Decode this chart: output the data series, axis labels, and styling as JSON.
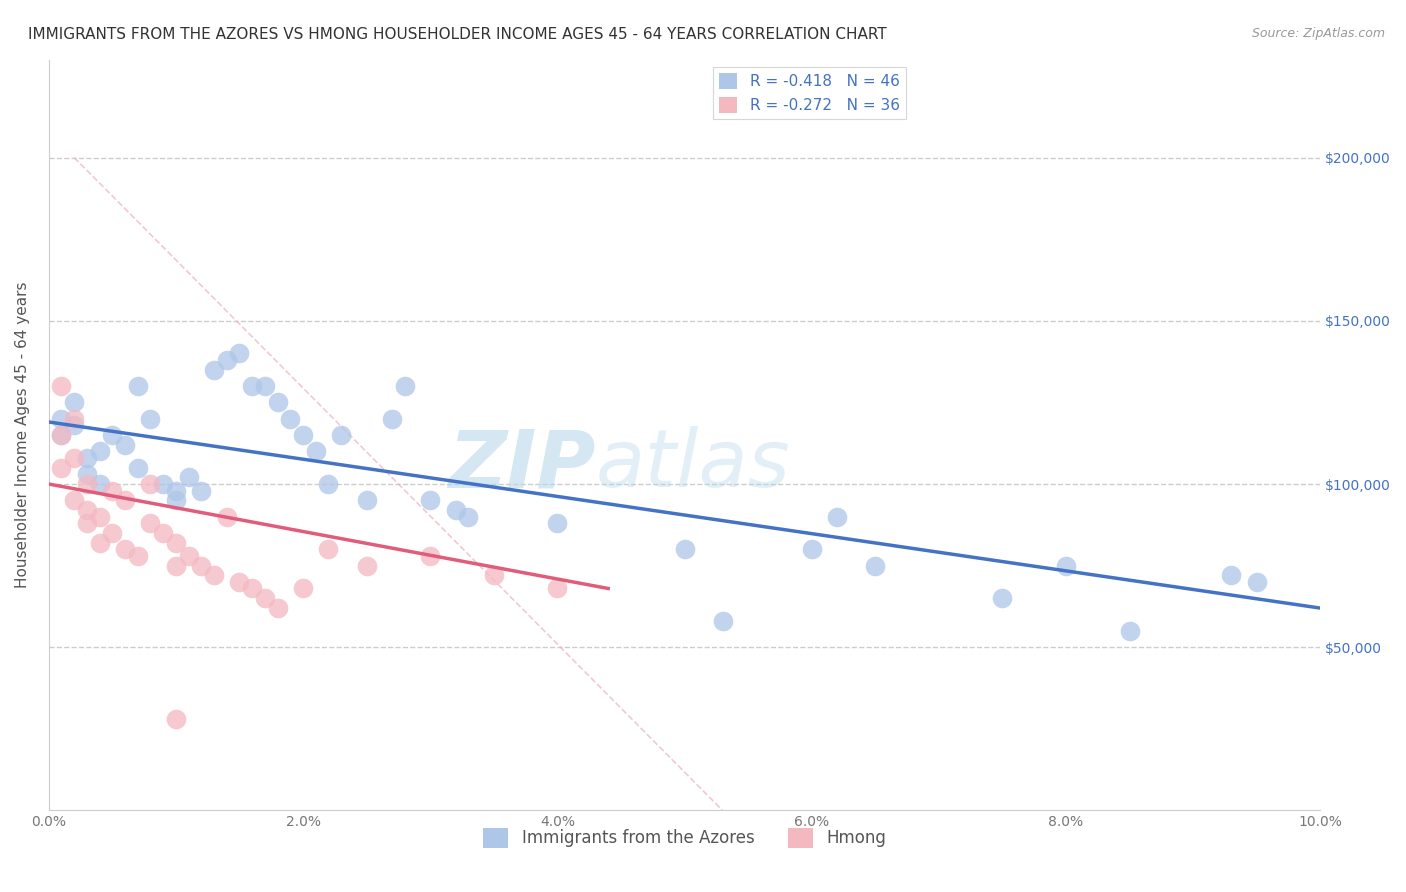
{
  "title": "IMMIGRANTS FROM THE AZORES VS HMONG HOUSEHOLDER INCOME AGES 45 - 64 YEARS CORRELATION CHART",
  "source": "Source: ZipAtlas.com",
  "ylabel": "Householder Income Ages 45 - 64 years",
  "xlim": [
    0.0,
    0.1
  ],
  "ylim": [
    0,
    230000
  ],
  "xticks": [
    0.0,
    0.02,
    0.04,
    0.06,
    0.08,
    0.1
  ],
  "xticklabels": [
    "0.0%",
    "2.0%",
    "4.0%",
    "6.0%",
    "8.0%",
    "10.0%"
  ],
  "yticks": [
    50000,
    100000,
    150000,
    200000
  ],
  "yticklabels": [
    "$50,000",
    "$100,000",
    "$150,000",
    "$200,000"
  ],
  "legend_entries": [
    {
      "label": "R = -0.418   N = 46",
      "color": "#aec6e8"
    },
    {
      "label": "R = -0.272   N = 36",
      "color": "#f4b8c1"
    }
  ],
  "azores_scatter": {
    "x": [
      0.001,
      0.001,
      0.002,
      0.002,
      0.003,
      0.003,
      0.004,
      0.004,
      0.005,
      0.006,
      0.007,
      0.007,
      0.008,
      0.009,
      0.01,
      0.01,
      0.011,
      0.012,
      0.013,
      0.014,
      0.015,
      0.016,
      0.017,
      0.018,
      0.019,
      0.02,
      0.021,
      0.022,
      0.023,
      0.025,
      0.027,
      0.028,
      0.03,
      0.032,
      0.033,
      0.04,
      0.05,
      0.053,
      0.06,
      0.062,
      0.065,
      0.075,
      0.08,
      0.085,
      0.093,
      0.095
    ],
    "y": [
      120000,
      115000,
      125000,
      118000,
      108000,
      103000,
      110000,
      100000,
      115000,
      112000,
      130000,
      105000,
      120000,
      100000,
      98000,
      95000,
      102000,
      98000,
      135000,
      138000,
      140000,
      130000,
      130000,
      125000,
      120000,
      115000,
      110000,
      100000,
      115000,
      95000,
      120000,
      130000,
      95000,
      92000,
      90000,
      88000,
      80000,
      58000,
      80000,
      90000,
      75000,
      65000,
      75000,
      55000,
      72000,
      70000
    ]
  },
  "hmong_scatter": {
    "x": [
      0.001,
      0.001,
      0.001,
      0.002,
      0.002,
      0.002,
      0.003,
      0.003,
      0.003,
      0.004,
      0.004,
      0.005,
      0.005,
      0.006,
      0.006,
      0.007,
      0.008,
      0.008,
      0.009,
      0.01,
      0.01,
      0.011,
      0.012,
      0.013,
      0.014,
      0.015,
      0.016,
      0.017,
      0.018,
      0.02,
      0.022,
      0.025,
      0.03,
      0.035,
      0.04,
      0.01
    ],
    "y": [
      130000,
      115000,
      105000,
      120000,
      108000,
      95000,
      100000,
      92000,
      88000,
      90000,
      82000,
      98000,
      85000,
      95000,
      80000,
      78000,
      100000,
      88000,
      85000,
      82000,
      75000,
      78000,
      75000,
      72000,
      90000,
      70000,
      68000,
      65000,
      62000,
      68000,
      80000,
      75000,
      78000,
      72000,
      68000,
      28000
    ]
  },
  "azores_line": {
    "x0": 0.0,
    "y0": 119000,
    "x1": 0.1,
    "y1": 62000
  },
  "hmong_line": {
    "x0": 0.0,
    "y0": 100000,
    "x1": 0.044,
    "y1": 68000
  },
  "diag_line": {
    "x0": 0.002,
    "y0": 200000,
    "x1": 0.053,
    "y1": 0
  },
  "watermark_left": "ZIP",
  "watermark_right": "atlas",
  "watermark_color": "#b8d8ea",
  "background_color": "#ffffff",
  "grid_color": "#cccccc",
  "azores_color": "#aec6e8",
  "hmong_color": "#f4b8c1",
  "azores_line_color": "#4472c4",
  "hmong_line_color": "#e05c7a",
  "title_fontsize": 11,
  "axis_label_fontsize": 11,
  "tick_fontsize": 10,
  "right_tick_color": "#4472c4"
}
